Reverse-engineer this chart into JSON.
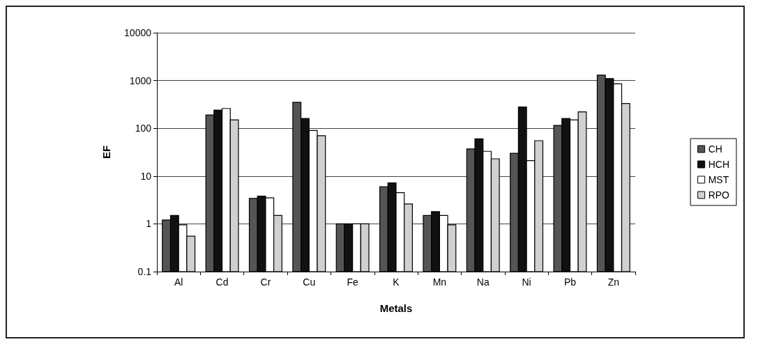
{
  "chart_data": {
    "type": "bar",
    "xlabel": "Metals",
    "ylabel": "EF",
    "log": true,
    "grid": "y",
    "legend": "right",
    "categories": [
      "Al",
      "Cd",
      "Cr",
      "Cu",
      "Fe",
      "K",
      "Mn",
      "Na",
      "Ni",
      "Pb",
      "Zn"
    ],
    "ylim": [
      0.1,
      10000
    ],
    "yticks": [
      0.1,
      1,
      10,
      100,
      1000,
      10000
    ],
    "series": [
      {
        "name": "CH",
        "color": "#555555",
        "values": [
          1.2,
          190,
          3.4,
          350,
          1,
          6,
          1.5,
          37,
          30,
          115,
          1300
        ]
      },
      {
        "name": "HCH",
        "color": "#111111",
        "values": [
          1.5,
          240,
          3.8,
          160,
          1,
          7.2,
          1.8,
          60,
          280,
          160,
          1100
        ]
      },
      {
        "name": "MST",
        "color": "#ffffff",
        "values": [
          0.95,
          260,
          3.5,
          90,
          1,
          4.5,
          1.5,
          33,
          21,
          150,
          850
        ]
      },
      {
        "name": "RPO",
        "color": "#d0d0d0",
        "values": [
          0.55,
          150,
          1.5,
          70,
          1,
          2.6,
          0.95,
          23,
          55,
          220,
          330
        ]
      }
    ]
  }
}
